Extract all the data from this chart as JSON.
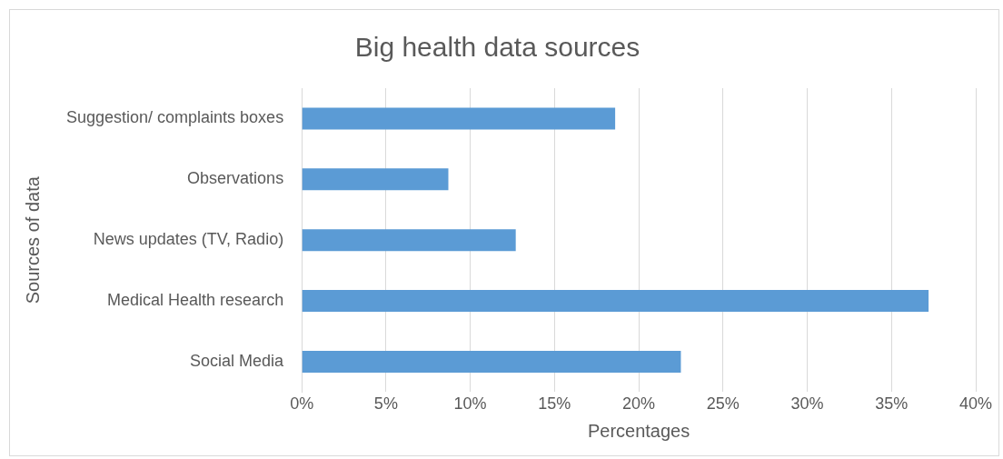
{
  "chart_data": {
    "type": "bar",
    "orientation": "horizontal",
    "title": "Big health data sources",
    "xlabel": "Percentages",
    "ylabel": "Sources of data",
    "categories": [
      "Suggestion/ complaints boxes",
      "Observations",
      "News updates (TV, Radio)",
      "Medical Health research",
      "Social Media"
    ],
    "values": [
      18.6,
      8.7,
      12.7,
      37.2,
      22.5
    ],
    "color": "#5b9bd5",
    "xlim": [
      0,
      40
    ],
    "xticks": [
      {
        "value": 0,
        "label": "0%"
      },
      {
        "value": 5,
        "label": "5%"
      },
      {
        "value": 10,
        "label": "10%"
      },
      {
        "value": 15,
        "label": "15%"
      },
      {
        "value": 20,
        "label": "20%"
      },
      {
        "value": 25,
        "label": "25%"
      },
      {
        "value": 30,
        "label": "30%"
      },
      {
        "value": 35,
        "label": "35%"
      },
      {
        "value": 40,
        "label": "40%"
      }
    ],
    "grid": "x"
  }
}
